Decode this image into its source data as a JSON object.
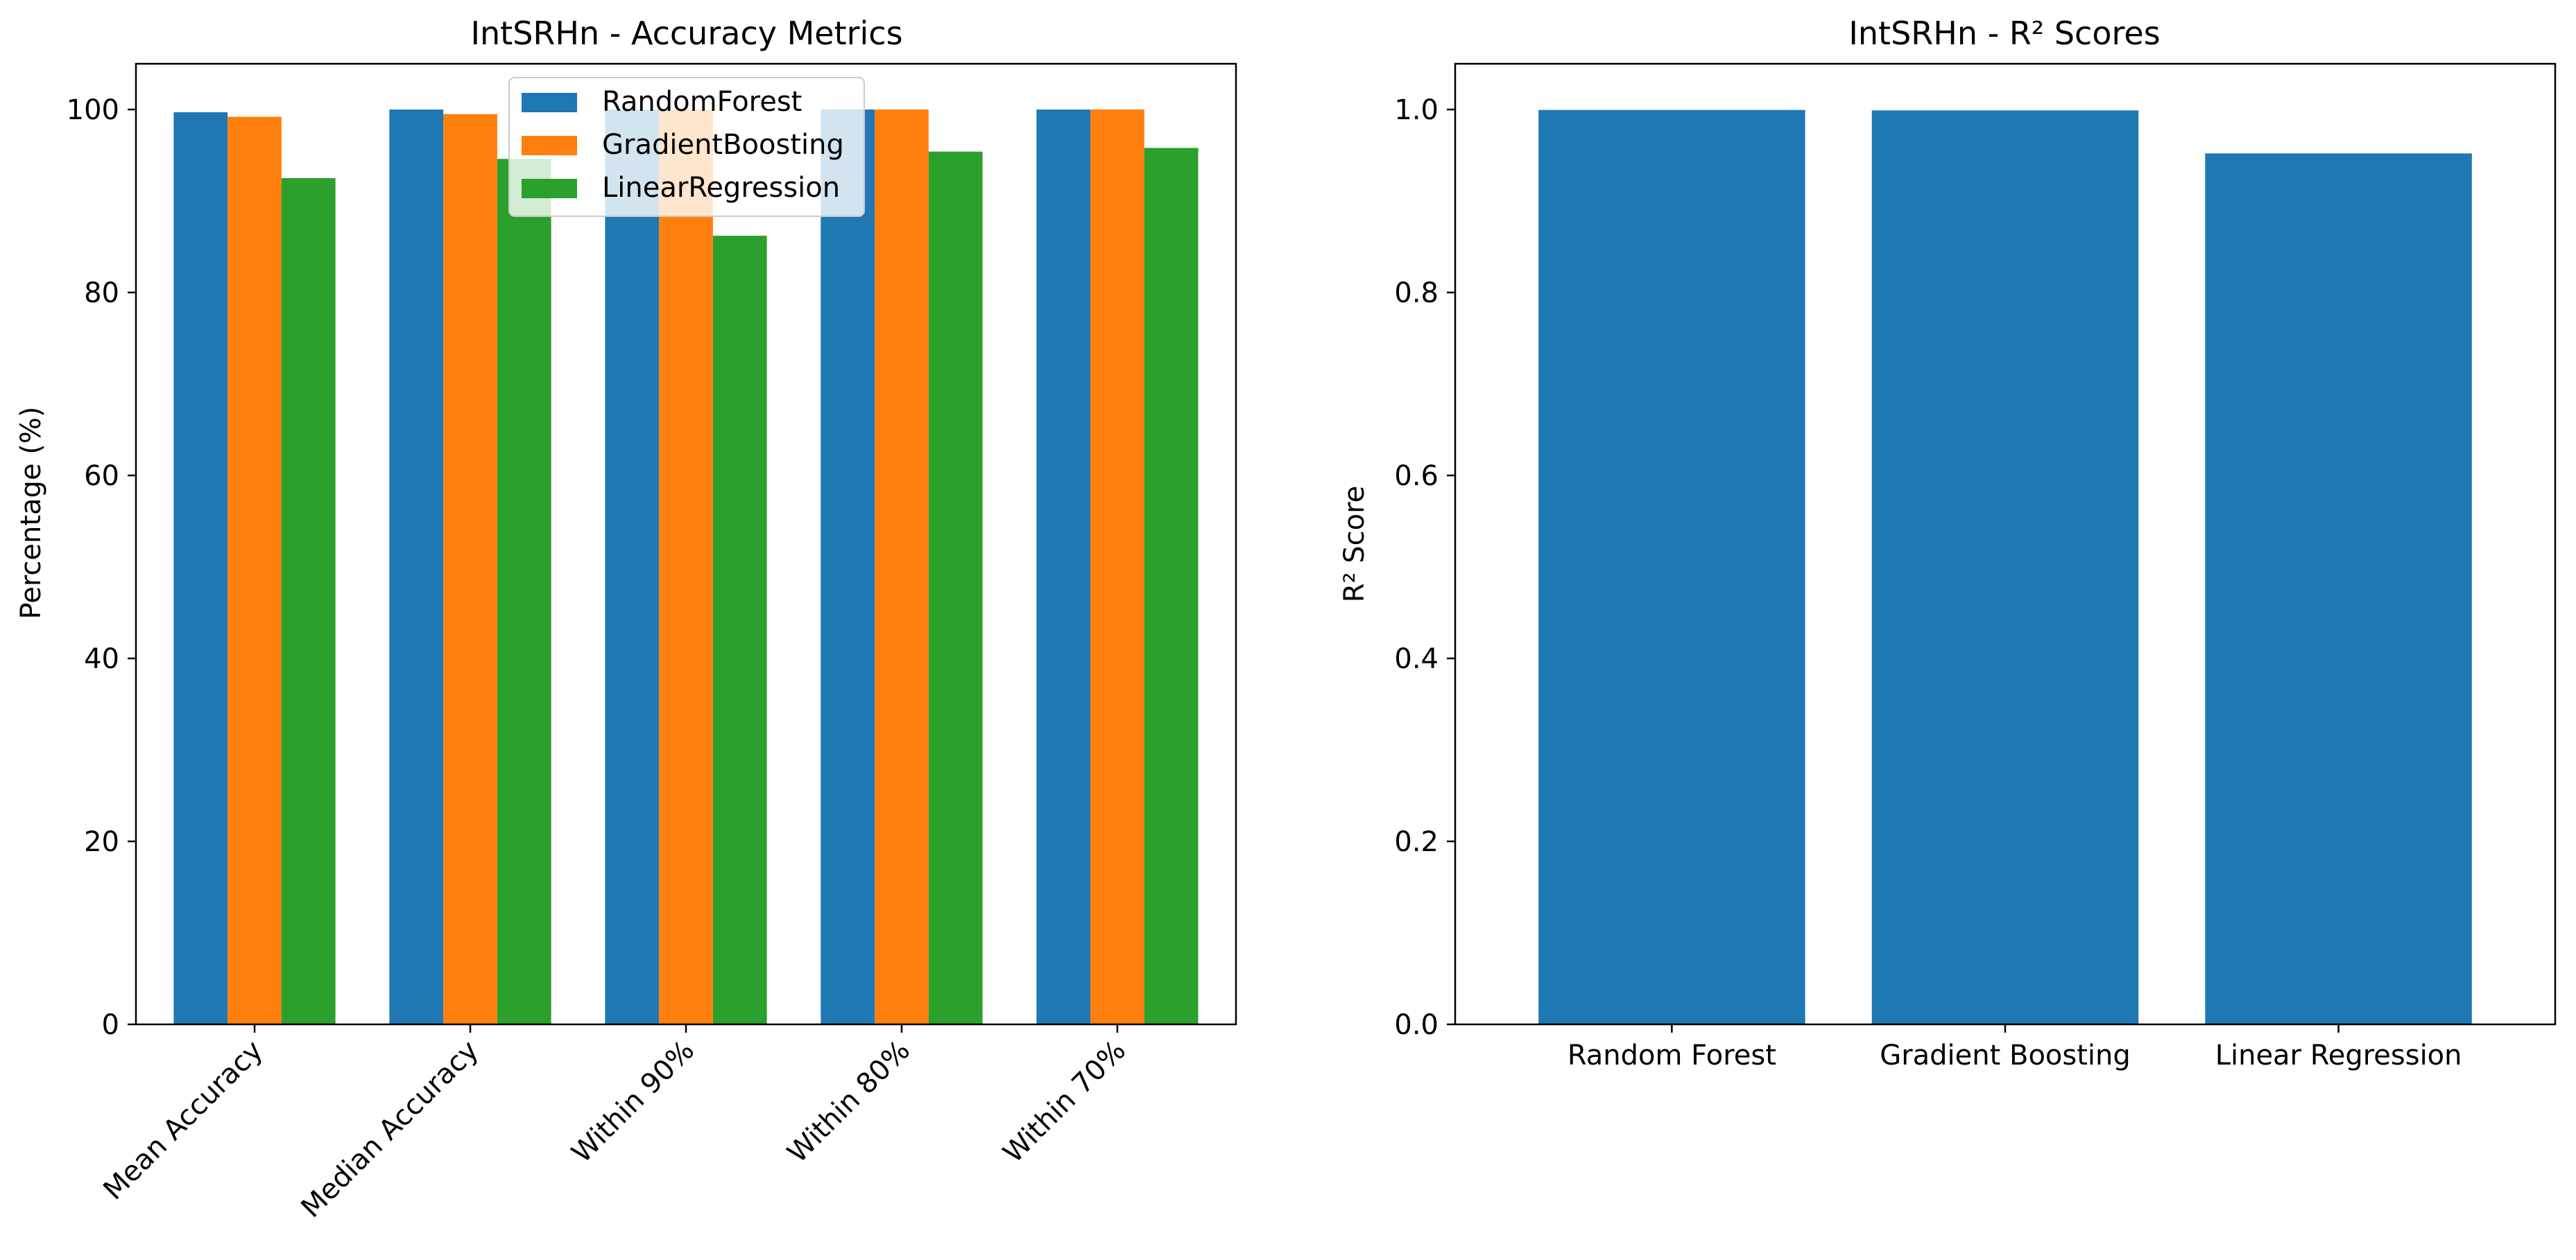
{
  "chart_data": [
    {
      "type": "bar",
      "title": "IntSRHn - Accuracy Metrics",
      "xlabel": "",
      "ylabel": "Percentage (%)",
      "categories": [
        "Mean Accuracy",
        "Median Accuracy",
        "Within 90%",
        "Within 80%",
        "Within 70%"
      ],
      "series": [
        {
          "name": "RandomForest",
          "color": "#1f77b4",
          "values": [
            99.7,
            100.0,
            100.0,
            100.0,
            100.0
          ]
        },
        {
          "name": "GradientBoosting",
          "color": "#ff7f0e",
          "values": [
            99.2,
            99.5,
            100.0,
            100.0,
            100.0
          ]
        },
        {
          "name": "LinearRegression",
          "color": "#2ca02c",
          "values": [
            92.5,
            94.6,
            86.2,
            95.4,
            95.8
          ]
        }
      ],
      "ylim": [
        0,
        105
      ],
      "yticks": [
        "0",
        "20",
        "40",
        "60",
        "80",
        "100"
      ],
      "ytick_values": [
        0,
        20,
        40,
        60,
        80,
        100
      ],
      "xtick_rotation": 45,
      "legend": "upper center",
      "grid": false
    },
    {
      "type": "bar",
      "title": "IntSRHn - R² Scores",
      "xlabel": "",
      "ylabel": "R² Score",
      "categories": [
        "Random Forest",
        "Gradient Boosting",
        "Linear Regression"
      ],
      "values": [
        0.9995,
        0.999,
        0.952
      ],
      "color": "#1f77b4",
      "ylim": [
        0,
        1.05
      ],
      "yticks": [
        "0.0",
        "0.2",
        "0.4",
        "0.6",
        "0.8",
        "1.0"
      ],
      "ytick_values": [
        0,
        0.2,
        0.4,
        0.6,
        0.8,
        1.0
      ],
      "grid": false
    }
  ]
}
